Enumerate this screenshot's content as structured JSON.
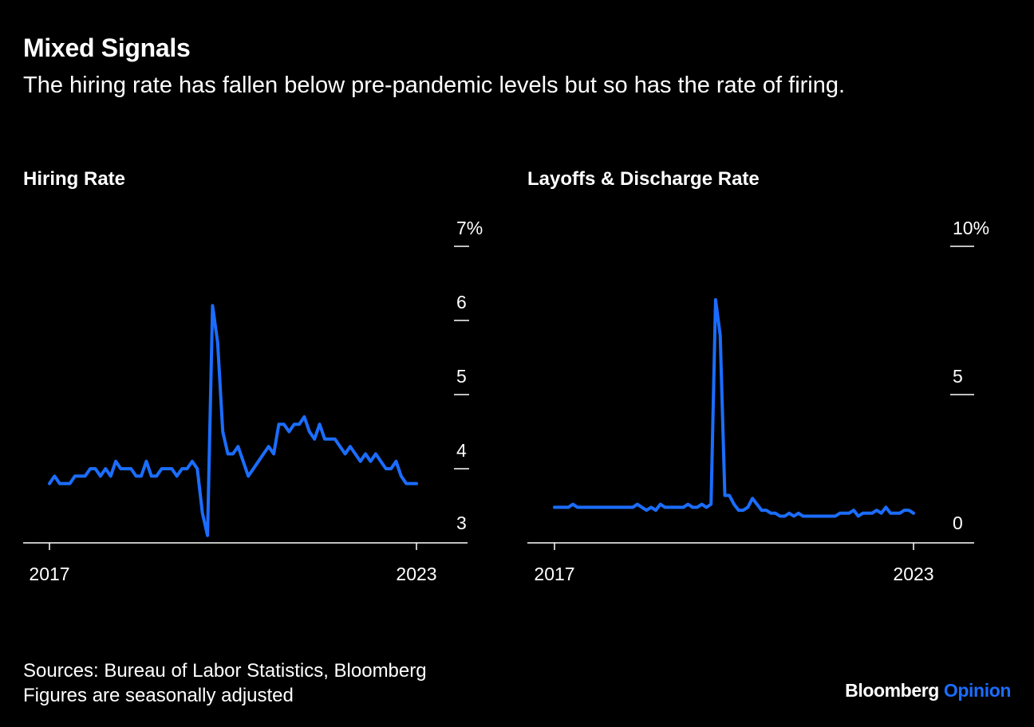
{
  "header": {
    "title": "Mixed Signals",
    "subtitle": "The hiring rate has fallen below pre-pandemic levels but so has the rate of firing."
  },
  "footer": {
    "sources": "Sources: Bureau of Labor Statistics, Bloomberg",
    "note": "Figures are seasonally adjusted",
    "brand_primary": "Bloomberg",
    "brand_secondary": "Opinion"
  },
  "colors": {
    "background": "#000000",
    "line": "#1b6dff",
    "text": "#ffffff",
    "brand_accent": "#1b6dff"
  },
  "chart_data": [
    {
      "type": "line",
      "title": "Hiring Rate",
      "x_start": 2017,
      "x_end": 2023,
      "x_tick_labels": [
        "2017",
        "2023"
      ],
      "ylim": [
        3,
        7
      ],
      "y_ticks": [
        3,
        4,
        5,
        6,
        7
      ],
      "y_tick_labels": [
        "3",
        "4",
        "5",
        "6",
        "7%"
      ],
      "grid": false,
      "series": [
        {
          "values": [
            3.8,
            3.9,
            3.8,
            3.8,
            3.8,
            3.9,
            3.9,
            3.9,
            4.0,
            4.0,
            3.9,
            4.0,
            3.9,
            4.1,
            4.0,
            4.0,
            4.0,
            3.9,
            3.9,
            4.1,
            3.9,
            3.9,
            4.0,
            4.0,
            4.0,
            3.9,
            4.0,
            4.0,
            4.1,
            4.0,
            3.4,
            3.1,
            6.2,
            5.7,
            4.5,
            4.2,
            4.2,
            4.3,
            4.1,
            3.9,
            4.0,
            4.1,
            4.2,
            4.3,
            4.2,
            4.6,
            4.6,
            4.5,
            4.6,
            4.6,
            4.7,
            4.5,
            4.4,
            4.6,
            4.4,
            4.4,
            4.4,
            4.3,
            4.2,
            4.3,
            4.2,
            4.1,
            4.2,
            4.1,
            4.2,
            4.1,
            4.0,
            4.0,
            4.1,
            3.9,
            3.8,
            3.8,
            3.8
          ]
        }
      ]
    },
    {
      "type": "line",
      "title": "Layoffs & Discharge Rate",
      "x_start": 2017,
      "x_end": 2023,
      "x_tick_labels": [
        "2017",
        "2023"
      ],
      "ylim": [
        0,
        10
      ],
      "y_ticks": [
        0,
        5,
        10
      ],
      "y_tick_labels": [
        "0",
        "5",
        "10%"
      ],
      "grid": false,
      "series": [
        {
          "values": [
            1.2,
            1.2,
            1.2,
            1.2,
            1.3,
            1.2,
            1.2,
            1.2,
            1.2,
            1.2,
            1.2,
            1.2,
            1.2,
            1.2,
            1.2,
            1.2,
            1.2,
            1.2,
            1.3,
            1.2,
            1.1,
            1.2,
            1.1,
            1.3,
            1.2,
            1.2,
            1.2,
            1.2,
            1.2,
            1.3,
            1.2,
            1.2,
            1.3,
            1.2,
            1.3,
            8.2,
            7.0,
            1.6,
            1.6,
            1.3,
            1.1,
            1.1,
            1.2,
            1.5,
            1.3,
            1.1,
            1.1,
            1.0,
            1.0,
            0.9,
            0.9,
            1.0,
            0.9,
            1.0,
            0.9,
            0.9,
            0.9,
            0.9,
            0.9,
            0.9,
            0.9,
            0.9,
            1.0,
            1.0,
            1.0,
            1.1,
            0.9,
            1.0,
            1.0,
            1.0,
            1.1,
            1.0,
            1.2,
            1.0,
            1.0,
            1.0,
            1.1,
            1.1,
            1.0
          ]
        }
      ]
    }
  ]
}
